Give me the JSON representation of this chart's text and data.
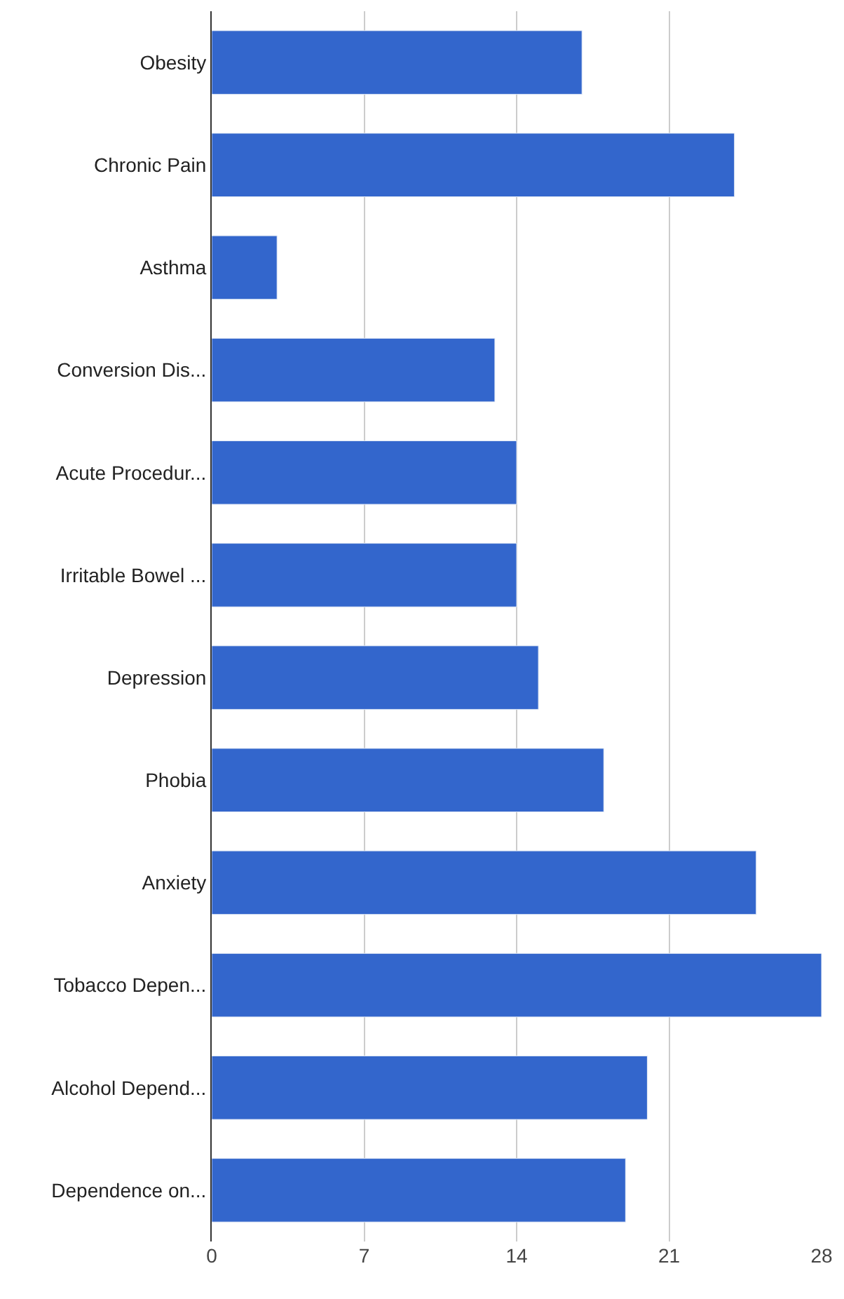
{
  "chart_data": {
    "type": "bar",
    "orientation": "horizontal",
    "categories": [
      "Obesity",
      "Chronic Pain",
      "Asthma",
      "Conversion Dis...",
      "Acute Procedur...",
      "Irritable Bowel ...",
      "Depression",
      "Phobia",
      "Anxiety",
      "Tobacco Depen...",
      "Alcohol Depend...",
      "Dependence on..."
    ],
    "values": [
      17,
      24,
      3,
      13,
      14,
      14,
      15,
      18,
      25,
      28,
      20,
      19
    ],
    "color": "#3366cc",
    "xlim": [
      0,
      28
    ],
    "xticks": [
      0,
      7,
      14,
      21,
      28
    ],
    "grid": "x",
    "legend": false
  }
}
